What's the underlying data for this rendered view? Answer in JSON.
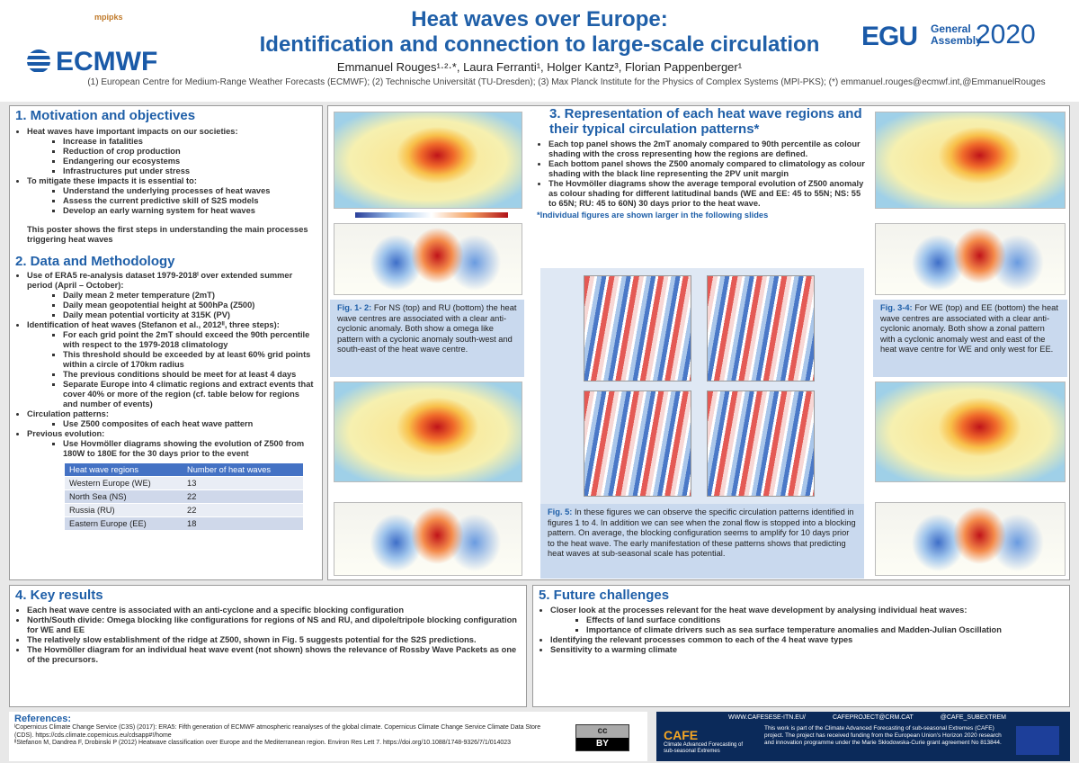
{
  "header": {
    "title_line1": "Heat waves over Europe:",
    "title_line2": "Identification and connection to large-scale circulation",
    "authors": "Emmanuel Rouges¹·²·*, Laura Ferranti¹, Holger Kantz³, Florian Pappenberger¹",
    "affiliations": "(1) European Centre for Medium-Range Weather Forecasts (ECMWF); (2) Technische Universität (TU-Dresden); (3) Max Planck Institute for the Physics of Complex Systems (MPI-PKS); (*) emmanuel.rouges@ecmwf.int,@EmmanuelRouges",
    "logo_mpipks": "mpipks",
    "logo_ecmwf": "ECMWF",
    "logo_egu": "EGU",
    "logo_egu_sub": "General Assembly",
    "logo_egu_year": "2020"
  },
  "motivation": {
    "title": "1. Motivation and objectives",
    "items": [
      {
        "text": "Heat waves have important impacts on our societies:",
        "sub": [
          "Increase in fatalities",
          "Reduction of crop production",
          "Endangering our ecosystems",
          "Infrastructures put under stress"
        ]
      },
      {
        "text": "To mitigate these impacts it is essential to:",
        "sub": [
          "Understand the underlying processes of heat waves",
          "Assess the current predictive skill of S2S models",
          "Develop an early warning system for heat waves"
        ]
      }
    ],
    "closing": "This poster shows the first steps in understanding the main processes triggering heat waves"
  },
  "data_methodology": {
    "title": "2. Data and Methodology",
    "items": [
      {
        "text": "Use of ERA5 re-analysis dataset 1979-2018ᴵ over extended summer period (April – October):",
        "sub": [
          "Daily mean 2 meter temperature (2mT)",
          "Daily mean geopotential height at 500hPa (Z500)",
          "Daily mean potential vorticity at 315K (PV)"
        ]
      },
      {
        "text": "Identification of heat waves (Stefanon et al., 2012ᴵᴵ, three steps):",
        "sub": [
          "For each grid point the 2mT should exceed the 90th percentile with respect to the 1979-2018 climatology",
          "This threshold should be exceeded by at least 60% grid points within a circle of 170km radius",
          "The previous conditions should be meet for at least 4 days",
          "Separate Europe into 4 climatic regions and extract events that cover 40% or more of the region (cf. table below for regions and number of events)"
        ]
      },
      {
        "text": "Circulation patterns:",
        "sub": [
          "Use Z500 composites of each heat wave pattern"
        ]
      },
      {
        "text": "Previous evolution:",
        "sub": [
          "Use Hovmöller diagrams showing the evolution of Z500 from 180W to 180E for the 30 days prior to the event"
        ]
      }
    ],
    "table": {
      "headers": [
        "Heat wave regions",
        "Number of heat waves"
      ],
      "rows": [
        [
          "Western Europe (WE)",
          13
        ],
        [
          "North Sea (NS)",
          22
        ],
        [
          "Russia (RU)",
          22
        ],
        [
          "Eastern Europe (EE)",
          18
        ]
      ]
    }
  },
  "representation": {
    "title": "3. Representation of each heat wave regions and their typical circulation patterns*",
    "items": [
      "Each top panel shows the 2mT anomaly compared to 90th percentile as colour shading with the cross representing how the regions are defined.",
      "Each bottom panel shows the Z500 anomaly compared to climatology as colour shading with the black line representing the 2PV unit margin",
      "The Hovmöller diagrams show the average temporal evolution of Z500 anomaly as colour shading for different latitudinal bands (WE and EE: 45 to 55N; NS: 55 to 65N; RU: 45 to 60N) 30 days prior to the heat wave."
    ],
    "note": "*Individual figures are shown larger in the following slides"
  },
  "figures": {
    "fig12": {
      "label": "Fig. 1- 2:",
      "text": "For NS (top) and RU (bottom) the heat wave centres are associated with a clear anti-cyclonic anomaly. Both show a omega like pattern with a cyclonic anomaly south-west and south-east of the heat wave centre."
    },
    "fig34": {
      "label": "Fig. 3-4:",
      "text": "For WE (top) and EE (bottom) the heat wave centres are associated with a clear anti-cyclonic anomaly. Both show a zonal pattern with a cyclonic anomaly west and east of the heat wave centre for WE and only west for EE."
    },
    "fig5": {
      "label": "Fig. 5:",
      "text": "In these figures we can observe the specific circulation patterns identified in figures 1 to 4. In addition we can see when the zonal flow is stopped into a blocking pattern. On average, the blocking configuration seems to amplify for 10 days prior to the heat wave. The early manifestation of these patterns shows that predicting heat waves at sub-seasonal scale has potential."
    }
  },
  "key_results": {
    "title": "4. Key results",
    "items": [
      "Each heat wave centre is associated with an anti-cyclone and a specific blocking configuration",
      "North/South divide: Omega blocking like configurations for regions of NS and RU, and dipole/tripole blocking configuration for WE and EE",
      "The relatively slow establishment  of the ridge at Z500, shown in Fig. 5 suggests potential for the S2S predictions.",
      "The Hovmöller diagram for an individual heat wave event (not shown) shows the relevance of Rossby Wave Packets as one of the precursors."
    ]
  },
  "future": {
    "title": "5. Future challenges",
    "items": [
      {
        "text": "Closer look at the processes relevant for the heat wave development by analysing individual heat waves:",
        "sub": [
          "Effects of land surface conditions",
          "Importance of climate drivers such as sea surface temperature anomalies and Madden-Julian Oscillation"
        ]
      },
      {
        "text": "Identifying the relevant processes common to each of the 4 heat wave types",
        "sub": []
      },
      {
        "text": "Sensitivity to a warming climate",
        "sub": []
      }
    ]
  },
  "references": {
    "title": "References:",
    "items": [
      "ᴵCopernicus Climate Change Service (C3S) (2017): ERA5: Fifth generation of ECMWF atmospheric reanalyses of the global climate. Copernicus Climate Change Service Climate Data Store (CDS). https://cds.climate.copernicus.eu/cdsapp#!/home",
      "ᴵᴵStefanon M, Dandrea F, Drobinski P (2012) Heatwave classification over Europe and the Mediterranean region. Environ Res Lett 7. https://doi.org/10.1088/1748-9326/7/1/014023"
    ],
    "license": "cc",
    "license_by": "BY"
  },
  "footer": {
    "website": "WWW.CAFESESE-ITN.EU/",
    "email": "CAFEPROJECT@CRM.CAT",
    "twitter": "@CAFE_SUBEXTREM",
    "cafe": "CAFE",
    "cafe_full": "Climate Advanced Forecasting of sub-seasonal Extremes",
    "funding": "This work is part of the Climate Advanced Forecasting of sub-seasonal Extremes (CAFE) project. The project has received funding from the European Union's Horizon 2020 research and innovation programme under the Marie Skłodowska-Curie grant agreement No 813844."
  }
}
